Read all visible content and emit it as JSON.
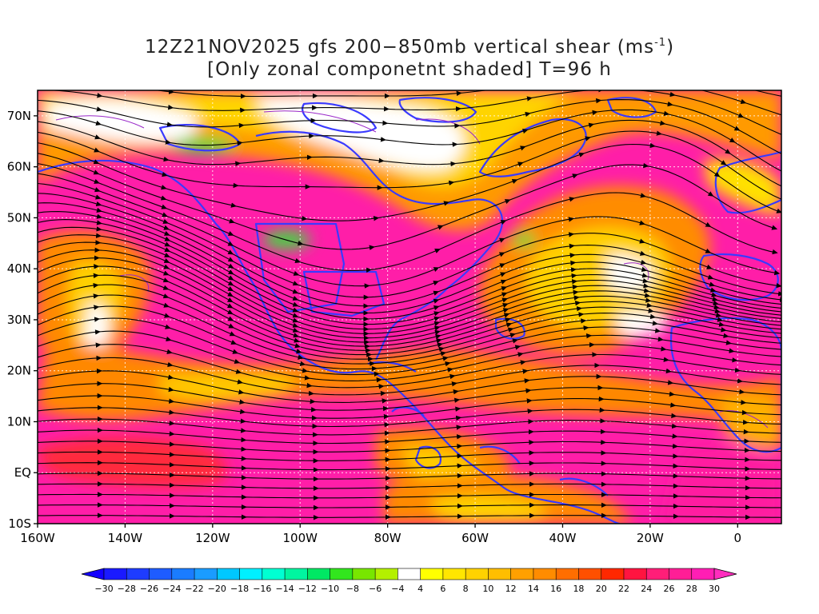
{
  "title": {
    "line1_prefix": "12Z21NOV2025 gfs 200−850mb vertical shear (ms",
    "line1_sup": "-1",
    "line1_suffix": ")",
    "line2": "[Only zonal componetnt shaded] T=96 h"
  },
  "map": {
    "lon_range": [
      -160,
      10
    ],
    "lat_range": [
      -10,
      75
    ],
    "lat_labels": [
      "70N",
      "60N",
      "50N",
      "40N",
      "30N",
      "20N",
      "10N",
      "EQ",
      "10S"
    ],
    "lat_values": [
      70,
      60,
      50,
      40,
      30,
      20,
      10,
      0,
      -10
    ],
    "lon_labels": [
      "160W",
      "140W",
      "120W",
      "100W",
      "80W",
      "60W",
      "40W",
      "20W",
      "0"
    ],
    "lon_values": [
      -160,
      -140,
      -120,
      -100,
      -80,
      -60,
      -40,
      -20,
      0
    ],
    "grid": true,
    "coastline_color": "#3a3aff",
    "streamline_color": "#000000"
  },
  "colorbar": {
    "labels": [
      "-30",
      "-28",
      "-26",
      "-24",
      "-22",
      "-20",
      "-18",
      "-16",
      "-14",
      "-12",
      "-10",
      "-8",
      "-6",
      "-4",
      "4",
      "6",
      "8",
      "10",
      "12",
      "14",
      "16",
      "18",
      "20",
      "22",
      "24",
      "26",
      "28",
      "30"
    ],
    "colors": [
      "#1a1aff",
      "#1e3cff",
      "#1e5cff",
      "#1a7cff",
      "#1a9cff",
      "#00c8ff",
      "#00f0ff",
      "#00ffd2",
      "#00f5a0",
      "#00e864",
      "#32e61e",
      "#78e600",
      "#b4f000",
      "#ffffff",
      "#ffff00",
      "#ffe600",
      "#ffd200",
      "#ffbe00",
      "#ffa000",
      "#ff8c00",
      "#ff6e00",
      "#ff5000",
      "#ff2800",
      "#ff1440",
      "#ff1e78",
      "#ff1e96",
      "#ff1eb4"
    ],
    "low_color": "#1400ff",
    "high_color": "#ff2dbe"
  }
}
